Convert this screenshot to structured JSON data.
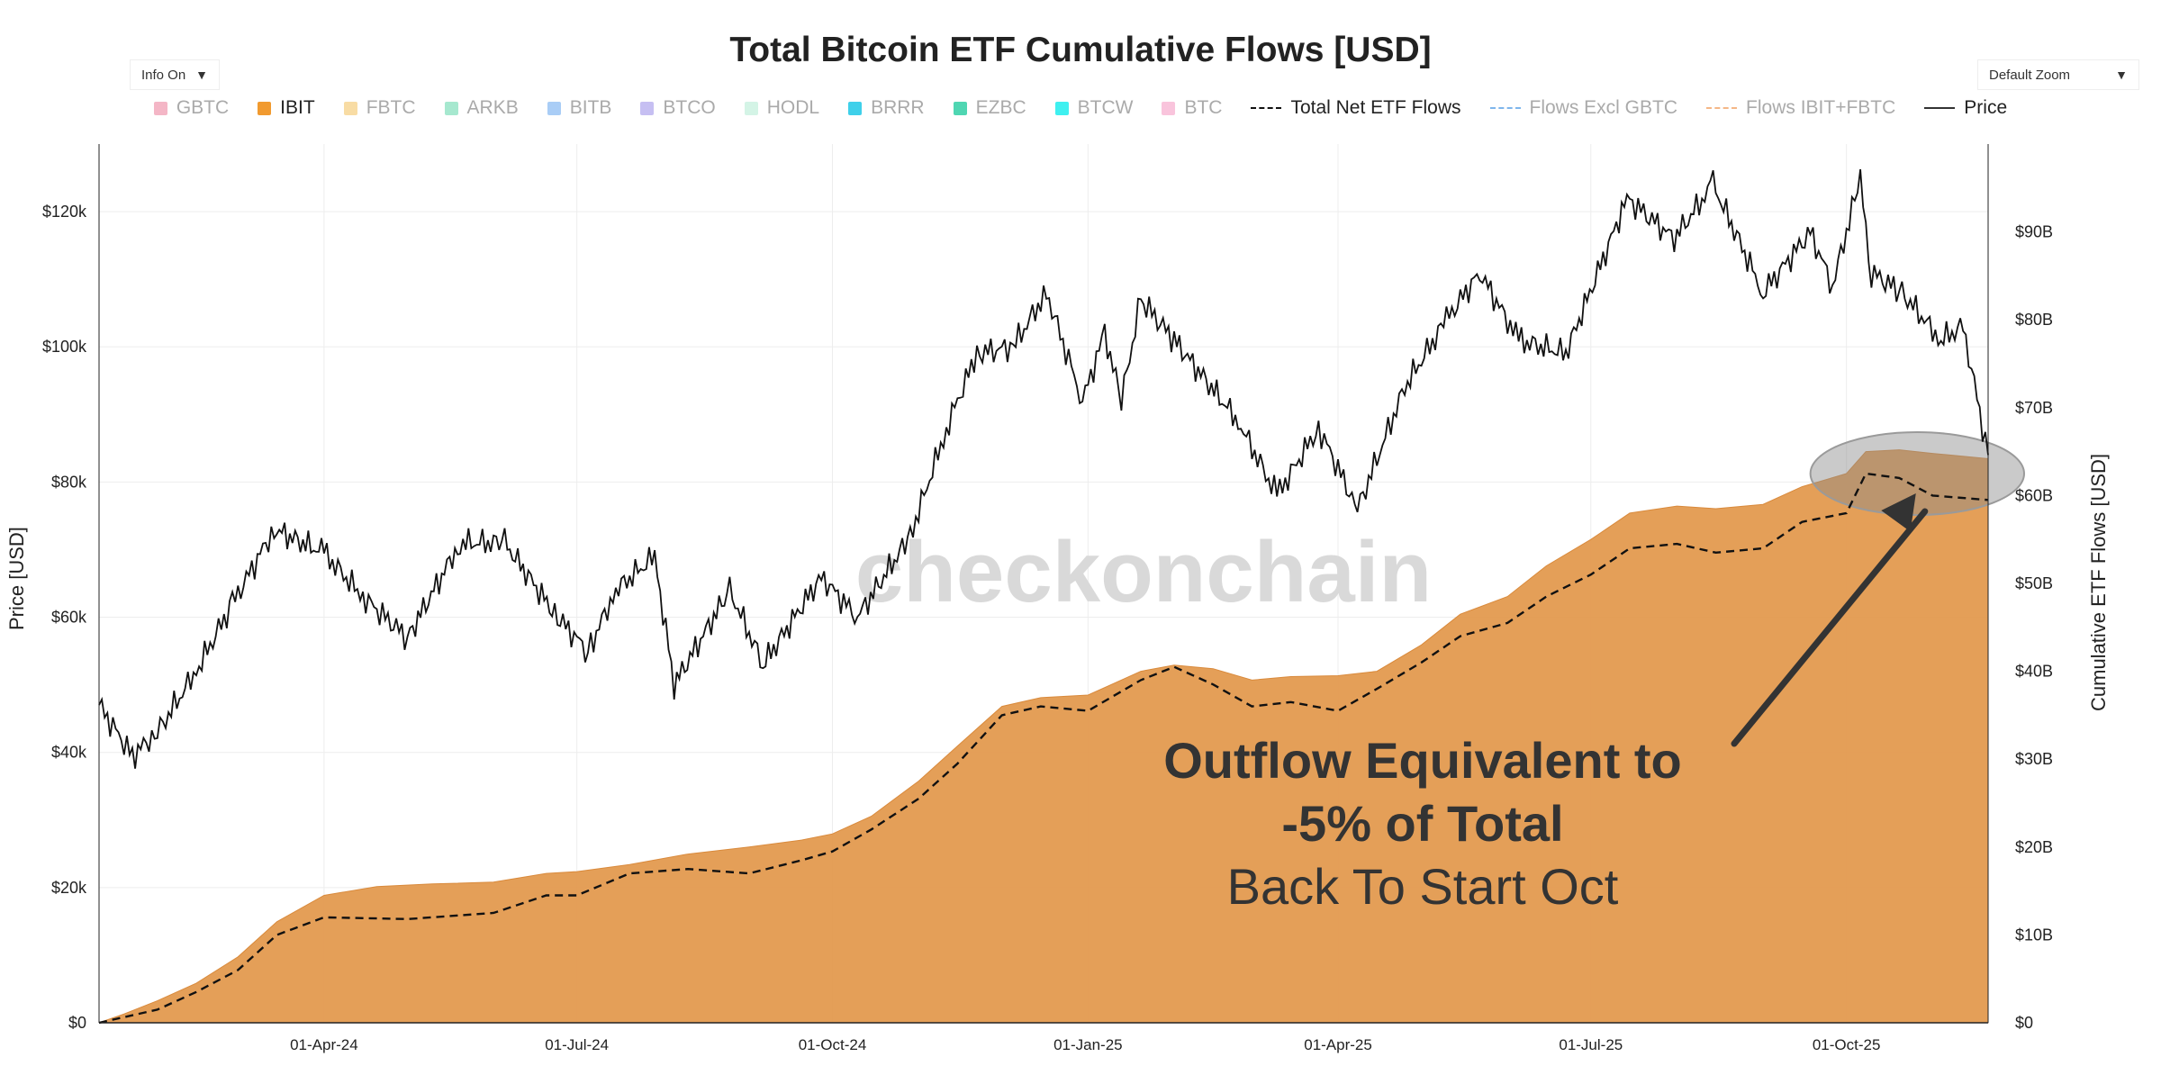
{
  "header": {
    "title": "Total Bitcoin ETF Cumulative Flows [USD]",
    "info_label": "Info On",
    "zoom_label": "Default Zoom"
  },
  "legend": [
    {
      "name": "GBTC",
      "color": "#f4b6c6",
      "kind": "swatch",
      "active": false
    },
    {
      "name": "IBIT",
      "color": "#f19a2f",
      "kind": "swatch",
      "active": true
    },
    {
      "name": "FBTC",
      "color": "#f8dca4",
      "kind": "swatch",
      "active": false
    },
    {
      "name": "ARKB",
      "color": "#a6e8cf",
      "kind": "swatch",
      "active": false
    },
    {
      "name": "BITB",
      "color": "#a9cdf6",
      "kind": "swatch",
      "active": false
    },
    {
      "name": "BTCO",
      "color": "#c6bff2",
      "kind": "swatch",
      "active": false
    },
    {
      "name": "HODL",
      "color": "#d4f4e6",
      "kind": "swatch",
      "active": false
    },
    {
      "name": "BRRR",
      "color": "#3fd0ea",
      "kind": "swatch",
      "active": false
    },
    {
      "name": "EZBC",
      "color": "#4fd6b2",
      "kind": "swatch",
      "active": false
    },
    {
      "name": "BTCW",
      "color": "#3ff0f0",
      "kind": "swatch",
      "active": false
    },
    {
      "name": "BTC",
      "color": "#f9c4dc",
      "kind": "swatch",
      "active": false
    },
    {
      "name": "Total Net ETF Flows",
      "color": "#111111",
      "kind": "dash",
      "active": true
    },
    {
      "name": "Flows Excl GBTC",
      "color": "#7fb6ec",
      "kind": "dash",
      "active": false
    },
    {
      "name": "Flows IBIT+FBTC",
      "color": "#f5b787",
      "kind": "dash",
      "active": false
    },
    {
      "name": "Price",
      "color": "#333333",
      "kind": "line",
      "active": true
    }
  ],
  "annotation": {
    "line1": "Outflow Equivalent to",
    "line2": "-5% of Total",
    "line3": "Back To Start Oct"
  },
  "watermark": "checkonchain",
  "chart_data": {
    "type": "area",
    "title": "Total Bitcoin ETF Cumulative Flows [USD]",
    "xlabel": "",
    "ylabel_left": "Price [USD]",
    "ylabel_right": "Cumulative ETF Flows [USD]",
    "left_axis": {
      "min": 0,
      "max": 130000,
      "ticks": [
        0,
        20000,
        40000,
        60000,
        80000,
        100000,
        120000
      ],
      "tick_labels": [
        "$0",
        "$20k",
        "$40k",
        "$60k",
        "$80k",
        "$100k",
        "$120k"
      ]
    },
    "right_axis": {
      "min": 0,
      "max": 100000000000,
      "ticks": [
        0,
        10,
        20,
        30,
        40,
        50,
        60,
        70,
        80,
        90
      ],
      "tick_labels": [
        "$0",
        "$10B",
        "$20B",
        "$30B",
        "$40B",
        "$50B",
        "$60B",
        "$70B",
        "$80B",
        "$90B"
      ]
    },
    "x_range": [
      "2024-01-11",
      "2025-11-21"
    ],
    "x_ticks": [
      "2024-04-01",
      "2024-07-01",
      "2024-10-01",
      "2025-01-01",
      "2025-04-01",
      "2025-07-01",
      "2025-10-01"
    ],
    "x_tick_labels": [
      "01-Apr-24",
      "01-Jul-24",
      "01-Oct-24",
      "01-Jan-25",
      "01-Apr-25",
      "01-Jul-25",
      "01-Oct-25"
    ],
    "series": [
      {
        "name": "IBIT",
        "unit": "USD billions",
        "style": "area",
        "color": "#e39a4f",
        "points": [
          [
            "2024-01-11",
            0
          ],
          [
            "2024-01-20",
            1.0
          ],
          [
            "2024-02-01",
            2.5
          ],
          [
            "2024-02-15",
            4.5
          ],
          [
            "2024-03-01",
            7.5
          ],
          [
            "2024-03-15",
            11.5
          ],
          [
            "2024-04-01",
            14.5
          ],
          [
            "2024-04-20",
            15.5
          ],
          [
            "2024-05-10",
            15.8
          ],
          [
            "2024-06-01",
            16.0
          ],
          [
            "2024-06-20",
            17.0
          ],
          [
            "2024-07-01",
            17.2
          ],
          [
            "2024-07-20",
            18.0
          ],
          [
            "2024-08-10",
            19.2
          ],
          [
            "2024-09-01",
            20.0
          ],
          [
            "2024-09-20",
            20.8
          ],
          [
            "2024-10-01",
            21.5
          ],
          [
            "2024-10-15",
            23.5
          ],
          [
            "2024-11-01",
            27.5
          ],
          [
            "2024-11-15",
            31.5
          ],
          [
            "2024-12-01",
            36.0
          ],
          [
            "2024-12-15",
            37.0
          ],
          [
            "2025-01-01",
            37.3
          ],
          [
            "2025-01-20",
            40.0
          ],
          [
            "2025-02-01",
            40.7
          ],
          [
            "2025-02-15",
            40.3
          ],
          [
            "2025-03-01",
            39.0
          ],
          [
            "2025-03-15",
            39.4
          ],
          [
            "2025-04-01",
            39.5
          ],
          [
            "2025-04-15",
            40.0
          ],
          [
            "2025-05-01",
            43.0
          ],
          [
            "2025-05-15",
            46.5
          ],
          [
            "2025-06-01",
            48.5
          ],
          [
            "2025-06-15",
            52.0
          ],
          [
            "2025-07-01",
            55.0
          ],
          [
            "2025-07-15",
            58.0
          ],
          [
            "2025-08-01",
            58.8
          ],
          [
            "2025-08-15",
            58.5
          ],
          [
            "2025-09-01",
            59.0
          ],
          [
            "2025-09-15",
            61.0
          ],
          [
            "2025-10-01",
            62.5
          ],
          [
            "2025-10-08",
            65.0
          ],
          [
            "2025-10-20",
            65.2
          ],
          [
            "2025-11-01",
            64.8
          ],
          [
            "2025-11-21",
            64.2
          ]
        ]
      },
      {
        "name": "Total Net ETF Flows",
        "unit": "USD billions",
        "style": "dashed",
        "color": "#111111",
        "points": [
          [
            "2024-01-11",
            0
          ],
          [
            "2024-02-01",
            1.5
          ],
          [
            "2024-02-15",
            3.5
          ],
          [
            "2024-03-01",
            6.0
          ],
          [
            "2024-03-15",
            10.0
          ],
          [
            "2024-04-01",
            12.0
          ],
          [
            "2024-05-01",
            11.8
          ],
          [
            "2024-06-01",
            12.5
          ],
          [
            "2024-06-20",
            14.5
          ],
          [
            "2024-07-01",
            14.5
          ],
          [
            "2024-07-20",
            17.0
          ],
          [
            "2024-08-10",
            17.5
          ],
          [
            "2024-09-01",
            17.0
          ],
          [
            "2024-09-20",
            18.5
          ],
          [
            "2024-10-01",
            19.5
          ],
          [
            "2024-10-15",
            22.0
          ],
          [
            "2024-11-01",
            25.5
          ],
          [
            "2024-11-15",
            29.5
          ],
          [
            "2024-12-01",
            35.0
          ],
          [
            "2024-12-15",
            36.0
          ],
          [
            "2025-01-01",
            35.5
          ],
          [
            "2025-01-20",
            39.0
          ],
          [
            "2025-02-01",
            40.5
          ],
          [
            "2025-02-15",
            38.5
          ],
          [
            "2025-03-01",
            36.0
          ],
          [
            "2025-03-15",
            36.5
          ],
          [
            "2025-04-01",
            35.5
          ],
          [
            "2025-04-15",
            38.0
          ],
          [
            "2025-05-01",
            41.0
          ],
          [
            "2025-05-15",
            44.0
          ],
          [
            "2025-06-01",
            45.5
          ],
          [
            "2025-06-15",
            48.5
          ],
          [
            "2025-07-01",
            51.0
          ],
          [
            "2025-07-15",
            54.0
          ],
          [
            "2025-08-01",
            54.5
          ],
          [
            "2025-08-15",
            53.5
          ],
          [
            "2025-09-01",
            54.0
          ],
          [
            "2025-09-15",
            57.0
          ],
          [
            "2025-10-01",
            58.0
          ],
          [
            "2025-10-08",
            62.5
          ],
          [
            "2025-10-20",
            62.0
          ],
          [
            "2025-11-01",
            60.0
          ],
          [
            "2025-11-21",
            59.5
          ]
        ]
      },
      {
        "name": "Price",
        "unit": "USD",
        "style": "line",
        "color": "#111111",
        "points": [
          [
            "2024-01-11",
            47000
          ],
          [
            "2024-01-23",
            39500
          ],
          [
            "2024-02-01",
            43000
          ],
          [
            "2024-02-15",
            52000
          ],
          [
            "2024-02-28",
            62000
          ],
          [
            "2024-03-14",
            73000
          ],
          [
            "2024-04-01",
            69500
          ],
          [
            "2024-04-15",
            63000
          ],
          [
            "2024-05-01",
            57000
          ],
          [
            "2024-05-20",
            71000
          ],
          [
            "2024-06-05",
            71000
          ],
          [
            "2024-06-24",
            60000
          ],
          [
            "2024-07-05",
            55000
          ],
          [
            "2024-07-15",
            64000
          ],
          [
            "2024-07-29",
            69000
          ],
          [
            "2024-08-05",
            50000
          ],
          [
            "2024-08-25",
            64000
          ],
          [
            "2024-09-06",
            53000
          ],
          [
            "2024-09-27",
            66000
          ],
          [
            "2024-10-10",
            60000
          ],
          [
            "2024-10-29",
            72000
          ],
          [
            "2024-11-12",
            89000
          ],
          [
            "2024-11-22",
            99000
          ],
          [
            "2024-12-05",
            100000
          ],
          [
            "2024-12-17",
            108000
          ],
          [
            "2024-12-30",
            92000
          ],
          [
            "2025-01-07",
            102000
          ],
          [
            "2025-01-13",
            92000
          ],
          [
            "2025-01-20",
            107000
          ],
          [
            "2025-02-01",
            101000
          ],
          [
            "2025-02-24",
            89000
          ],
          [
            "2025-03-10",
            78000
          ],
          [
            "2025-03-25",
            88000
          ],
          [
            "2025-04-08",
            76000
          ],
          [
            "2025-04-25",
            94000
          ],
          [
            "2025-05-10",
            104000
          ],
          [
            "2025-05-22",
            111000
          ],
          [
            "2025-06-05",
            101000
          ],
          [
            "2025-06-22",
            99000
          ],
          [
            "2025-07-14",
            122000
          ],
          [
            "2025-07-31",
            116000
          ],
          [
            "2025-08-14",
            124000
          ],
          [
            "2025-09-01",
            108000
          ],
          [
            "2025-09-18",
            117000
          ],
          [
            "2025-09-26",
            109000
          ],
          [
            "2025-10-06",
            125000
          ],
          [
            "2025-10-10",
            111000
          ],
          [
            "2025-10-21",
            108000
          ],
          [
            "2025-11-04",
            101000
          ],
          [
            "2025-11-12",
            103000
          ],
          [
            "2025-11-21",
            84000
          ]
        ]
      }
    ],
    "highlight": {
      "start": "2025-10-01",
      "end": "2025-11-21",
      "label": "Outflow Equivalent to -5% of Total"
    },
    "grid": true,
    "legend_position": "top"
  }
}
